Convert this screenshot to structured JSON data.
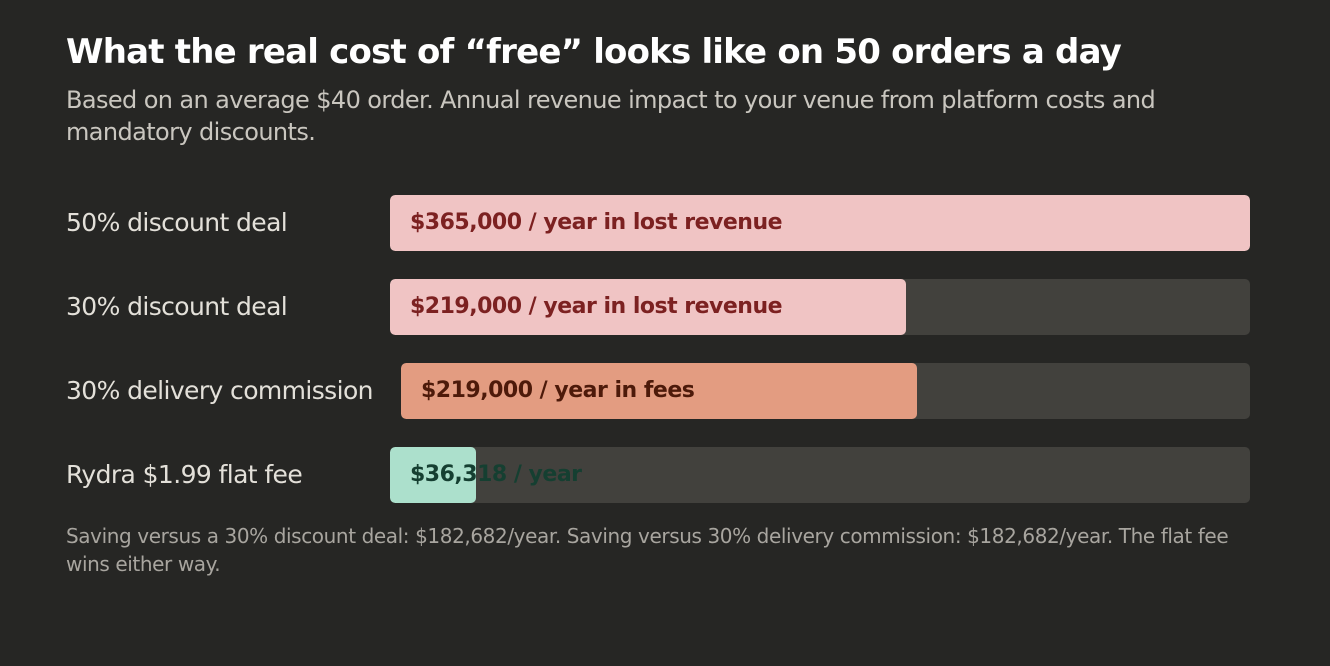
{
  "title": "What the real cost of “free” looks like on 50 orders a day",
  "subtitle": "Based on an average $40 order. Annual revenue impact to your venue from platform costs and mandatory discounts.",
  "footnote": "Saving versus a 30% discount deal: $182,682/year. Saving versus 30% delivery commission: $182,682/year. The flat fee wins either way.",
  "colors": {
    "discount_fill": "#f0c4c4",
    "discount_text": "#7c2121",
    "commission_fill": "#e39c81",
    "commission_text": "#4d1a0a",
    "flat_fill": "#ace0cc",
    "flat_text": "#153f31",
    "track": "#42413d"
  },
  "chart_data": {
    "type": "bar",
    "orientation": "horizontal",
    "unit": "USD per year",
    "xlim": [
      0,
      365000
    ],
    "categories": [
      "50% discount deal",
      "30% discount deal",
      "30% delivery commission",
      "Rydra $1.99 flat fee"
    ],
    "values": [
      365000,
      219000,
      219000,
      36318
    ],
    "bars": [
      {
        "label": "50% discount deal",
        "value": 365000,
        "text": "$365,000 / year in lost revenue",
        "style": "discount"
      },
      {
        "label": "30% discount deal",
        "value": 219000,
        "text": "$219,000 / year in lost revenue",
        "style": "discount"
      },
      {
        "label": "30% delivery commission",
        "value": 219000,
        "text": "$219,000 / year in fees",
        "style": "commission"
      },
      {
        "label": "Rydra $1.99 flat fee",
        "value": 36318,
        "text": "$36,318 / year",
        "style": "flat"
      }
    ]
  }
}
